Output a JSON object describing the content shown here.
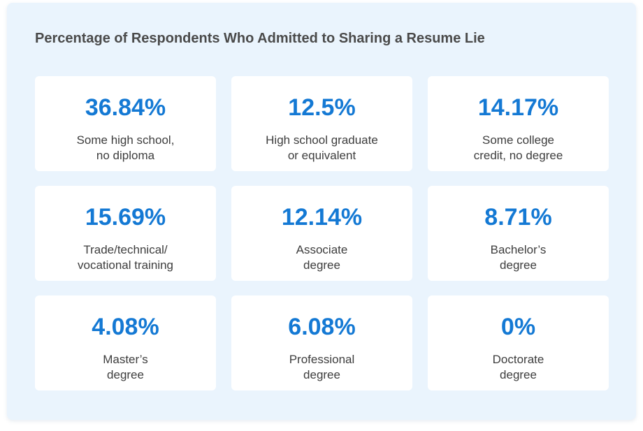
{
  "chart_data": {
    "type": "table",
    "title": "Percentage of Respondents Who Admitted to Sharing a Resume Lie",
    "unit": "%",
    "categories": [
      "Some high school,\nno diploma",
      "High school graduate\nor equivalent",
      "Some college\ncredit, no degree",
      "Trade/technical/\nvocational training",
      "Associate\ndegree",
      "Bachelor’s\ndegree",
      "Master’s\ndegree",
      "Professional\ndegree",
      "Doctorate\ndegree"
    ],
    "values": [
      36.84,
      12.5,
      14.17,
      15.69,
      12.14,
      8.71,
      4.08,
      6.08,
      0
    ],
    "value_labels": [
      "36.84%",
      "12.5%",
      "14.17%",
      "15.69%",
      "12.14%",
      "8.71%",
      "4.08%",
      "6.08%",
      "0%"
    ],
    "colors": {
      "value": "#1479d4",
      "label": "#3d3d3d",
      "title": "#4a4a4a",
      "panel": "#eaf4fd",
      "card": "#ffffff"
    }
  }
}
